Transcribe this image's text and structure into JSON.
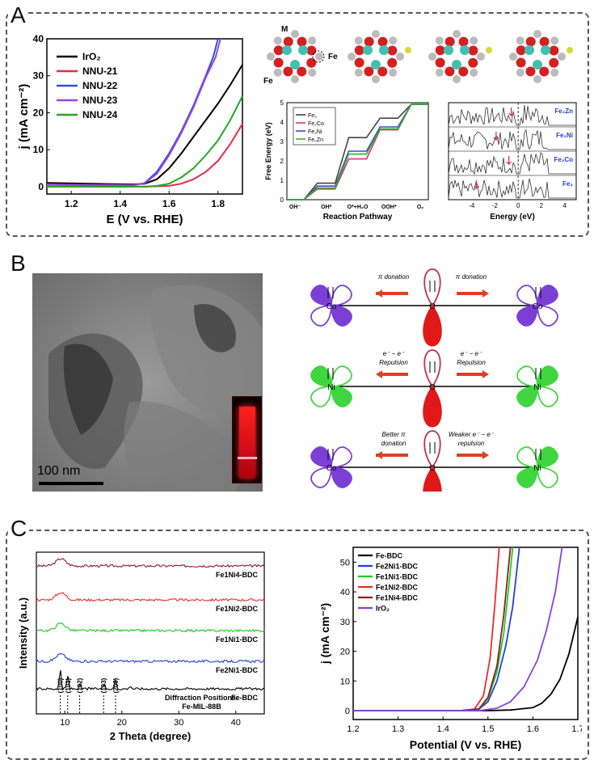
{
  "panels": {
    "a": "A",
    "b": "B",
    "c": "C"
  },
  "panel_a": {
    "structure_labels": [
      "M",
      "Fe",
      "Fe"
    ],
    "orbital_unit": "eV"
  },
  "panel_b": {
    "scale_bar": "100 nm",
    "rows": [
      {
        "left": "Co",
        "right": "Co",
        "center": "O",
        "left_text": "π donation",
        "right_text": "π donation",
        "left_color": "#7b3fd6",
        "right_color": "#7b3fd6"
      },
      {
        "left": "Ni",
        "right": "Ni",
        "center": "O",
        "left_text": "e⁻ − e⁻\nRepulsion",
        "right_text": "e⁻ − e⁻\nRepulsion",
        "left_color": "#3fd63f",
        "right_color": "#3fd63f"
      },
      {
        "left": "Co",
        "right": "Ni",
        "center": "O",
        "left_text": "Better π\ndonation",
        "right_text": "Weaker e⁻ − e⁻\nrepulsion",
        "left_color": "#7b3fd6",
        "right_color": "#3fd63f"
      }
    ]
  },
  "chart_data": [
    {
      "id": "A-lsv",
      "type": "line",
      "xlabel": "E (V vs. RHE)",
      "ylabel": "j (mA cm⁻²)",
      "xlim": [
        1.1,
        1.9
      ],
      "ylim": [
        -2,
        40
      ],
      "xticks": [
        "1.2",
        "1.4",
        "1.6",
        "1.8"
      ],
      "yticks": [
        "0",
        "10",
        "20",
        "30",
        "40"
      ],
      "legend_position": "top-left",
      "series": [
        {
          "name": "IrO₂",
          "color": "#000000",
          "x": [
            1.1,
            1.45,
            1.5,
            1.55,
            1.6,
            1.65,
            1.7,
            1.75,
            1.8,
            1.85,
            1.9
          ],
          "y": [
            1.0,
            0.6,
            0.8,
            2.0,
            5.0,
            9.0,
            13.5,
            18.0,
            22.5,
            27.5,
            33.0
          ]
        },
        {
          "name": "NNU-21",
          "color": "#ee2a4a",
          "x": [
            1.1,
            1.5,
            1.6,
            1.65,
            1.7,
            1.75,
            1.8,
            1.85,
            1.9
          ],
          "y": [
            0,
            0,
            0.2,
            0.8,
            2.0,
            4.0,
            7.0,
            11.5,
            17.0
          ]
        },
        {
          "name": "NNU-22",
          "color": "#2b50e0",
          "x": [
            1.1,
            1.45,
            1.5,
            1.55,
            1.6,
            1.65,
            1.7,
            1.75,
            1.78,
            1.8
          ],
          "y": [
            0.5,
            0.3,
            1.0,
            4.0,
            9.0,
            15.0,
            22.0,
            30.0,
            35.0,
            40.0
          ]
        },
        {
          "name": "NNU-23",
          "color": "#a040e0",
          "x": [
            1.1,
            1.45,
            1.5,
            1.55,
            1.6,
            1.65,
            1.7,
            1.75,
            1.79,
            1.81
          ],
          "y": [
            0.6,
            0.4,
            0.9,
            3.5,
            8.5,
            14.5,
            21.5,
            29.5,
            35.0,
            40.0
          ]
        },
        {
          "name": "NNU-24",
          "color": "#22a822",
          "x": [
            1.1,
            1.5,
            1.55,
            1.6,
            1.65,
            1.7,
            1.75,
            1.8,
            1.85,
            1.9
          ],
          "y": [
            0,
            0,
            0.2,
            0.8,
            2.5,
            5.0,
            8.5,
            12.5,
            18.0,
            24.5
          ]
        }
      ]
    },
    {
      "id": "A-free-energy",
      "type": "line",
      "xlabel": "Reaction Pathway",
      "ylabel": "Free Energy (eV)",
      "categories": [
        "OH⁻",
        "OH*",
        "O*+H₂O",
        "OOH*",
        "O₂"
      ],
      "ylim": [
        0,
        5
      ],
      "yticks": [
        "0",
        "1",
        "2",
        "3",
        "4",
        "5"
      ],
      "legend_position": "top-left",
      "series": [
        {
          "name": "Fe₃",
          "color": "#444444",
          "values": [
            0,
            0.85,
            3.2,
            4.2,
            4.92
          ]
        },
        {
          "name": "Fe₂Co",
          "color": "#e0306b",
          "values": [
            0,
            0.55,
            2.1,
            3.6,
            4.92
          ]
        },
        {
          "name": "Fe₂Ni",
          "color": "#3050d0",
          "values": [
            0,
            0.7,
            2.5,
            3.75,
            4.92
          ]
        },
        {
          "name": "Fe₂Zn",
          "color": "#30b030",
          "values": [
            0,
            0.6,
            2.35,
            3.65,
            4.92
          ]
        }
      ]
    },
    {
      "id": "A-pdos",
      "type": "line",
      "xlabel": "Energy (eV)",
      "xlim": [
        -6,
        5
      ],
      "xticks": [
        "-4",
        "-2",
        "0",
        "2",
        "4"
      ],
      "panels": [
        "Fe₂Zn",
        "Fe₂Ni",
        "Fe₂Co",
        "Fe₃"
      ]
    },
    {
      "id": "C-xrd",
      "type": "line",
      "xlabel": "2 Theta (degree)",
      "ylabel": "Intensity (a.u.)",
      "xlim": [
        5,
        45
      ],
      "xticks": [
        "10",
        "20",
        "30",
        "40"
      ],
      "series": [
        {
          "name": "Fe1Ni4-BDC",
          "color": "#8b1a2a"
        },
        {
          "name": "Fe1Ni2-BDC",
          "color": "#ee3030"
        },
        {
          "name": "Fe1Ni1-BDC",
          "color": "#22cc22"
        },
        {
          "name": "Fe2Ni1-BDC",
          "color": "#2040e0"
        },
        {
          "name": "Fe-BDC",
          "color": "#000000"
        }
      ],
      "annotations": {
        "peaks": [
          "(100)",
          "(101)",
          "(102)",
          "(103)",
          "(200)"
        ],
        "peak_x": [
          9.2,
          10.5,
          12.6,
          16.8,
          18.9
        ],
        "text1": "Diffraction Positions:",
        "text2": "Fe-MIL-88B"
      }
    },
    {
      "id": "C-lsv",
      "type": "line",
      "xlabel": "Potential (V vs. RHE)",
      "ylabel": "j (mA cm⁻²)",
      "xlim": [
        1.2,
        1.7
      ],
      "ylim": [
        -3,
        55
      ],
      "xticks": [
        "1.2",
        "1.3",
        "1.4",
        "1.5",
        "1.6",
        "1.7"
      ],
      "yticks": [
        "0",
        "10",
        "20",
        "30",
        "40",
        "50"
      ],
      "legend_position": "top-left",
      "series": [
        {
          "name": "Fe-BDC",
          "color": "#000000",
          "x": [
            1.2,
            1.5,
            1.55,
            1.6,
            1.62,
            1.64,
            1.66,
            1.68,
            1.7
          ],
          "y": [
            0,
            0,
            0.2,
            1.0,
            2.5,
            5.5,
            10.5,
            19.0,
            31.5
          ]
        },
        {
          "name": "Fe2Ni1-BDC",
          "color": "#2040e0",
          "x": [
            1.2,
            1.44,
            1.48,
            1.5,
            1.52,
            1.54,
            1.555,
            1.57
          ],
          "y": [
            0,
            0,
            0.5,
            3.0,
            10.0,
            22.0,
            35.0,
            55.0
          ]
        },
        {
          "name": "Fe1Ni1-BDC",
          "color": "#22cc22",
          "x": [
            1.2,
            1.44,
            1.48,
            1.5,
            1.52,
            1.535,
            1.545,
            1.555
          ],
          "y": [
            0,
            0,
            0.5,
            4.0,
            13.0,
            26.0,
            40.0,
            55.0
          ]
        },
        {
          "name": "Fe1Ni2-BDC",
          "color": "#ee2a2a",
          "x": [
            1.2,
            1.44,
            1.47,
            1.49,
            1.505,
            1.515,
            1.525
          ],
          "y": [
            0,
            0,
            0.5,
            5.0,
            18.0,
            35.0,
            55.0
          ]
        },
        {
          "name": "Fe1Ni4-BDC",
          "color": "#8b2020",
          "x": [
            1.2,
            1.44,
            1.48,
            1.5,
            1.52,
            1.535,
            1.55
          ],
          "y": [
            0,
            0,
            0.6,
            4.5,
            15.0,
            32.0,
            55.0
          ]
        },
        {
          "name": "IrO₂",
          "color": "#8a40e0",
          "x": [
            1.2,
            1.48,
            1.52,
            1.55,
            1.58,
            1.61,
            1.63,
            1.65,
            1.665
          ],
          "y": [
            0,
            0,
            0.8,
            3.0,
            8.0,
            17.0,
            27.0,
            40.0,
            55.0
          ]
        }
      ]
    }
  ]
}
